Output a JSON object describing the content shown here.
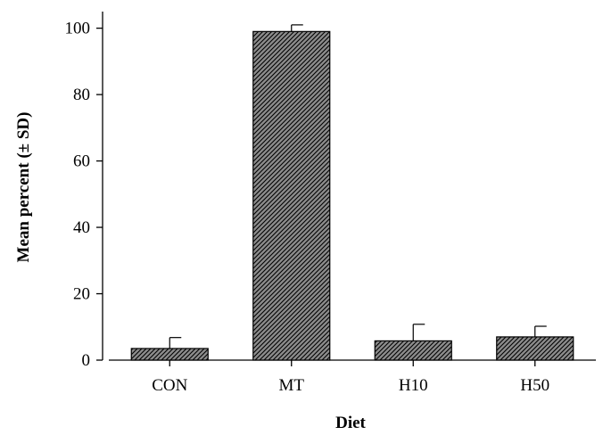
{
  "chart_data": {
    "type": "bar",
    "title": "",
    "xlabel": "Diet",
    "ylabel": "Mean percent (± SD)",
    "categories": [
      "CON",
      "MT",
      "H10",
      "H50"
    ],
    "values": [
      3.5,
      99,
      5.8,
      7
    ],
    "error_bars": [
      3.3,
      2,
      5,
      3.2
    ],
    "ylim": [
      0,
      105
    ],
    "yticks": [
      0,
      20,
      40,
      60,
      80,
      100
    ],
    "grid": false,
    "legend": "none",
    "bar_fill": "diagonal-hatch",
    "colors": {
      "bar_fill": "#8c8c8c",
      "hatch_line": "#000000",
      "axis": "#000000"
    }
  }
}
